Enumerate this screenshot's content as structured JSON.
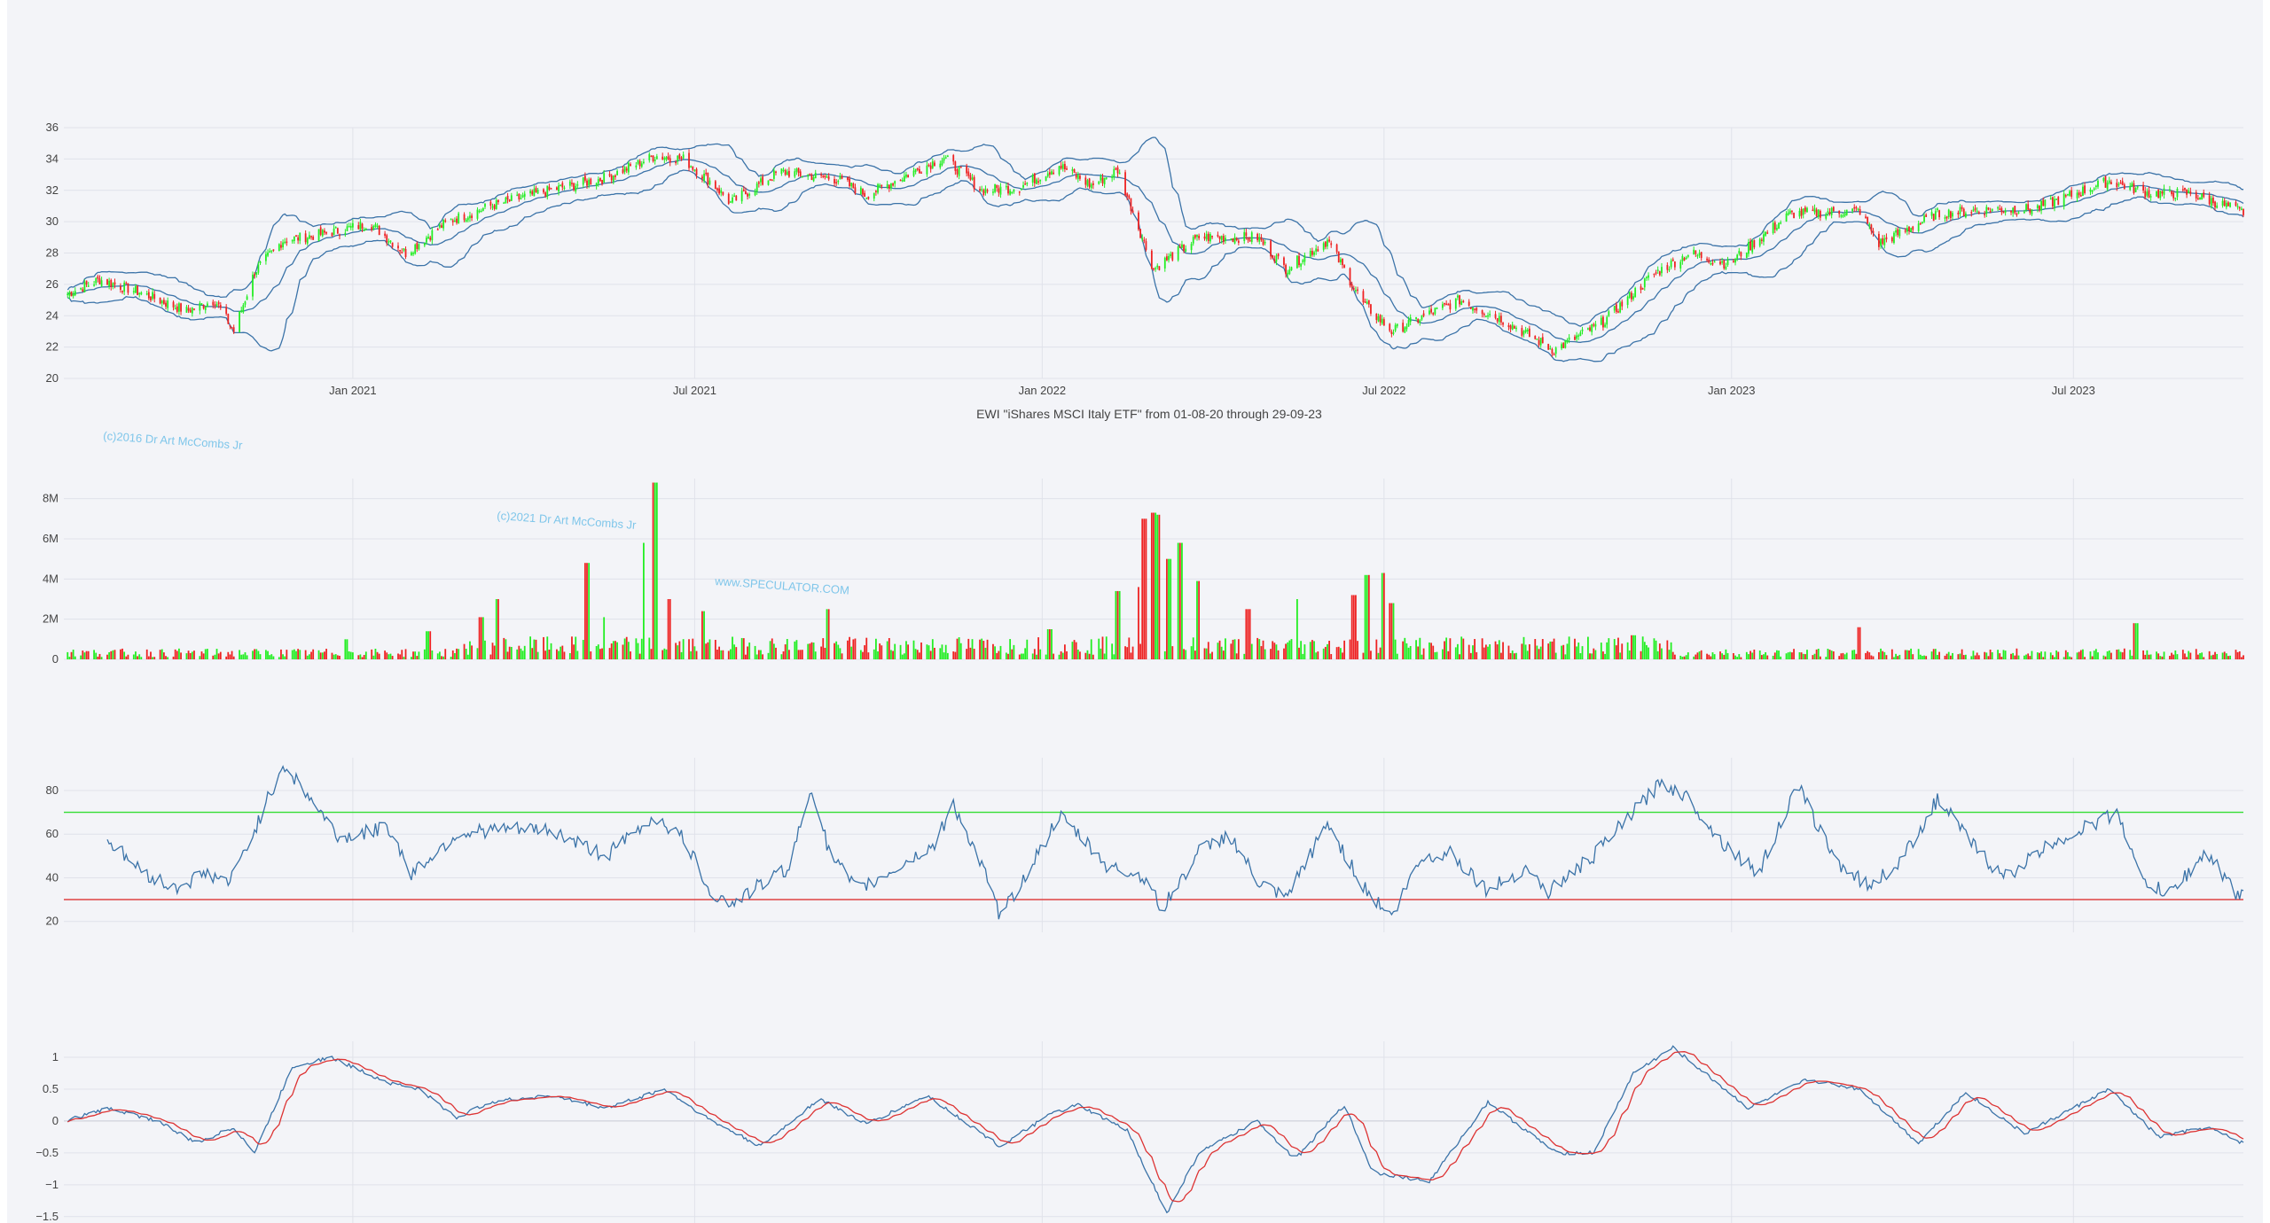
{
  "chart_data": [
    {
      "type": "candlestick",
      "panel": "price",
      "title": "EWI \"iShares MSCI Italy ETF\" from 01-08-20 through 29-09-23",
      "ylim": [
        20,
        36
      ],
      "y_ticks": [
        "20",
        "22",
        "24",
        "26",
        "28",
        "30",
        "32",
        "34",
        "36"
      ],
      "x_tick_labels": [
        "Jan 2021",
        "Jul 2021",
        "Jan 2022",
        "Jul 2022",
        "Jan 2023",
        "Jul 2023"
      ],
      "x_tick_dates": [
        "2021-01-01",
        "2021-07-01",
        "2022-01-01",
        "2022-07-01",
        "2023-01-01",
        "2023-07-01"
      ],
      "x_range": [
        "2020-08-01",
        "2023-09-29"
      ],
      "grid": true,
      "up_color": "#22ee22",
      "down_color": "#ee2222",
      "band_color": "#3b73a8",
      "close_anchors": [
        [
          "2020-08-01",
          25.3
        ],
        [
          "2020-08-20",
          26.3
        ],
        [
          "2020-09-10",
          25.5
        ],
        [
          "2020-10-05",
          24.3
        ],
        [
          "2020-10-20",
          25.0
        ],
        [
          "2020-10-30",
          23.0
        ],
        [
          "2020-11-10",
          26.8
        ],
        [
          "2020-11-25",
          28.8
        ],
        [
          "2020-12-20",
          29.3
        ],
        [
          "2021-01-10",
          29.9
        ],
        [
          "2021-01-29",
          28.0
        ],
        [
          "2021-02-20",
          30.0
        ],
        [
          "2021-03-15",
          31.0
        ],
        [
          "2021-04-15",
          32.0
        ],
        [
          "2021-05-15",
          32.8
        ],
        [
          "2021-06-10",
          34.2
        ],
        [
          "2021-06-25",
          34.0
        ],
        [
          "2021-07-10",
          32.5
        ],
        [
          "2021-07-20",
          31.2
        ],
        [
          "2021-08-15",
          33.2
        ],
        [
          "2021-09-15",
          32.7
        ],
        [
          "2021-09-30",
          31.7
        ],
        [
          "2021-10-25",
          33.2
        ],
        [
          "2021-11-10",
          34.1
        ],
        [
          "2021-11-30",
          32.0
        ],
        [
          "2021-12-20",
          32.2
        ],
        [
          "2022-01-10",
          33.6
        ],
        [
          "2022-01-27",
          32.3
        ],
        [
          "2022-02-10",
          33.3
        ],
        [
          "2022-03-01",
          27.0
        ],
        [
          "2022-03-25",
          29.0
        ],
        [
          "2022-04-25",
          29.0
        ],
        [
          "2022-05-10",
          27.0
        ],
        [
          "2022-06-01",
          28.8
        ],
        [
          "2022-06-20",
          24.8
        ],
        [
          "2022-07-05",
          23.0
        ],
        [
          "2022-08-10",
          25.0
        ],
        [
          "2022-09-01",
          23.8
        ],
        [
          "2022-09-29",
          21.8
        ],
        [
          "2022-10-25",
          23.6
        ],
        [
          "2022-11-20",
          26.6
        ],
        [
          "2022-12-10",
          28.0
        ],
        [
          "2022-12-30",
          27.3
        ],
        [
          "2023-02-01",
          30.5
        ],
        [
          "2023-03-10",
          30.7
        ],
        [
          "2023-03-20",
          28.6
        ],
        [
          "2023-04-20",
          30.5
        ],
        [
          "2023-05-20",
          30.8
        ],
        [
          "2023-06-10",
          30.8
        ],
        [
          "2023-07-20",
          32.6
        ],
        [
          "2023-08-10",
          31.8
        ],
        [
          "2023-09-01",
          31.8
        ],
        [
          "2023-09-29",
          30.6
        ]
      ]
    },
    {
      "type": "bar",
      "panel": "volume",
      "ylim": [
        0,
        9000000
      ],
      "y_ticks": [
        "0",
        "2M",
        "4M",
        "6M",
        "8M"
      ],
      "up_color": "#22ee22",
      "down_color": "#ee2222",
      "base_volume": 400000,
      "spikes": [
        [
          "2020-12-28",
          1000000
        ],
        [
          "2021-02-10",
          1400000
        ],
        [
          "2021-03-10",
          2100000
        ],
        [
          "2021-03-19",
          3000000
        ],
        [
          "2021-05-05",
          4800000
        ],
        [
          "2021-05-15",
          2100000
        ],
        [
          "2021-06-05",
          5800000
        ],
        [
          "2021-06-10",
          8800000
        ],
        [
          "2021-06-18",
          3000000
        ],
        [
          "2021-07-05",
          2400000
        ],
        [
          "2021-09-10",
          2500000
        ],
        [
          "2022-01-05",
          1500000
        ],
        [
          "2022-02-10",
          3400000
        ],
        [
          "2022-02-20",
          3600000
        ],
        [
          "2022-02-24",
          7000000
        ],
        [
          "2022-03-01",
          7300000
        ],
        [
          "2022-03-04",
          7200000
        ],
        [
          "2022-03-09",
          5000000
        ],
        [
          "2022-03-15",
          5800000
        ],
        [
          "2022-03-25",
          3900000
        ],
        [
          "2022-04-20",
          2500000
        ],
        [
          "2022-05-15",
          3000000
        ],
        [
          "2022-06-15",
          3200000
        ],
        [
          "2022-06-22",
          4200000
        ],
        [
          "2022-07-01",
          4300000
        ],
        [
          "2022-07-05",
          2800000
        ],
        [
          "2022-11-10",
          1200000
        ],
        [
          "2023-03-10",
          1600000
        ],
        [
          "2023-08-03",
          1800000
        ],
        [
          "2023-08-05",
          1600000
        ]
      ]
    },
    {
      "type": "line",
      "panel": "rsi",
      "ylim": [
        15,
        95
      ],
      "y_ticks": [
        "20",
        "40",
        "60",
        "80"
      ],
      "overbought": 70,
      "oversold": 30,
      "overbought_color": "#33dd33",
      "oversold_color": "#dd3333",
      "line_color": "#3b73a8",
      "anchors": [
        [
          "2020-08-22",
          59
        ],
        [
          "2020-09-10",
          44
        ],
        [
          "2020-09-28",
          35
        ],
        [
          "2020-10-15",
          42
        ],
        [
          "2020-10-28",
          38
        ],
        [
          "2020-11-10",
          62
        ],
        [
          "2020-11-25",
          92
        ],
        [
          "2020-12-10",
          76
        ],
        [
          "2020-12-25",
          58
        ],
        [
          "2021-01-20",
          63
        ],
        [
          "2021-02-01",
          42
        ],
        [
          "2021-02-25",
          60
        ],
        [
          "2021-03-15",
          62
        ],
        [
          "2021-04-15",
          62
        ],
        [
          "2021-05-15",
          50
        ],
        [
          "2021-06-10",
          68
        ],
        [
          "2021-06-25",
          58
        ],
        [
          "2021-07-10",
          33
        ],
        [
          "2021-07-20",
          28
        ],
        [
          "2021-08-20",
          45
        ],
        [
          "2021-09-01",
          82
        ],
        [
          "2021-09-10",
          52
        ],
        [
          "2021-09-25",
          34
        ],
        [
          "2021-10-15",
          44
        ],
        [
          "2021-11-05",
          55
        ],
        [
          "2021-11-15",
          74
        ],
        [
          "2021-12-01",
          43
        ],
        [
          "2021-12-10",
          22
        ],
        [
          "2021-12-25",
          44
        ],
        [
          "2022-01-10",
          68
        ],
        [
          "2022-01-20",
          60
        ],
        [
          "2022-02-05",
          45
        ],
        [
          "2022-02-25",
          40
        ],
        [
          "2022-03-05",
          25
        ],
        [
          "2022-03-25",
          52
        ],
        [
          "2022-04-10",
          60
        ],
        [
          "2022-04-25",
          38
        ],
        [
          "2022-05-10",
          30
        ],
        [
          "2022-06-01",
          65
        ],
        [
          "2022-06-20",
          36
        ],
        [
          "2022-07-05",
          22
        ],
        [
          "2022-07-20",
          48
        ],
        [
          "2022-08-05",
          52
        ],
        [
          "2022-08-25",
          34
        ],
        [
          "2022-09-15",
          45
        ],
        [
          "2022-09-25",
          33
        ],
        [
          "2022-10-20",
          50
        ],
        [
          "2022-11-10",
          70
        ],
        [
          "2022-11-25",
          84
        ],
        [
          "2022-12-10",
          76
        ],
        [
          "2022-12-25",
          58
        ],
        [
          "2023-01-15",
          42
        ],
        [
          "2023-02-05",
          82
        ],
        [
          "2023-02-25",
          48
        ],
        [
          "2023-03-15",
          36
        ],
        [
          "2023-04-01",
          48
        ],
        [
          "2023-04-20",
          76
        ],
        [
          "2023-05-10",
          54
        ],
        [
          "2023-05-25",
          40
        ],
        [
          "2023-06-20",
          56
        ],
        [
          "2023-07-15",
          66
        ],
        [
          "2023-07-25",
          70
        ],
        [
          "2023-08-05",
          40
        ],
        [
          "2023-08-20",
          32
        ],
        [
          "2023-09-10",
          52
        ],
        [
          "2023-09-27",
          30
        ],
        [
          "2023-09-29",
          33
        ]
      ]
    },
    {
      "type": "line",
      "panel": "macd",
      "ylim": [
        -1.6,
        1.25
      ],
      "y_ticks": [
        "1",
        "0.5",
        "0",
        "−0.5",
        "−1",
        "−1.5"
      ],
      "tick_values": [
        1,
        0.5,
        0,
        -0.5,
        -1,
        -1.5
      ],
      "series_colors": [
        "#3b73a8",
        "#dd3333"
      ],
      "signal_lag_days": 8,
      "anchors": [
        [
          "2020-08-01",
          0.0
        ],
        [
          "2020-08-25",
          0.2
        ],
        [
          "2020-09-20",
          0.0
        ],
        [
          "2020-10-10",
          -0.35
        ],
        [
          "2020-10-30",
          -0.1
        ],
        [
          "2020-11-10",
          -0.5
        ],
        [
          "2020-11-30",
          0.85
        ],
        [
          "2020-12-20",
          1.0
        ],
        [
          "2021-01-20",
          0.6
        ],
        [
          "2021-02-05",
          0.5
        ],
        [
          "2021-02-25",
          0.05
        ],
        [
          "2021-03-15",
          0.3
        ],
        [
          "2021-04-15",
          0.4
        ],
        [
          "2021-05-15",
          0.2
        ],
        [
          "2021-06-15",
          0.5
        ],
        [
          "2021-07-10",
          0.0
        ],
        [
          "2021-08-05",
          -0.4
        ],
        [
          "2021-09-05",
          0.35
        ],
        [
          "2021-09-30",
          -0.05
        ],
        [
          "2021-11-01",
          0.4
        ],
        [
          "2021-12-10",
          -0.4
        ],
        [
          "2022-01-05",
          0.1
        ],
        [
          "2022-01-20",
          0.25
        ],
        [
          "2022-02-15",
          -0.15
        ],
        [
          "2022-03-08",
          -1.45
        ],
        [
          "2022-03-25",
          -0.5
        ],
        [
          "2022-04-25",
          0.0
        ],
        [
          "2022-05-15",
          -0.6
        ],
        [
          "2022-06-10",
          0.25
        ],
        [
          "2022-06-25",
          -0.8
        ],
        [
          "2022-07-25",
          -0.95
        ],
        [
          "2022-08-25",
          0.3
        ],
        [
          "2022-09-30",
          -0.5
        ],
        [
          "2022-10-20",
          -0.5
        ],
        [
          "2022-11-10",
          0.75
        ],
        [
          "2022-12-01",
          1.15
        ],
        [
          "2023-01-10",
          0.2
        ],
        [
          "2023-02-10",
          0.65
        ],
        [
          "2023-03-10",
          0.5
        ],
        [
          "2023-04-10",
          -0.35
        ],
        [
          "2023-05-05",
          0.45
        ],
        [
          "2023-06-05",
          -0.2
        ],
        [
          "2023-07-20",
          0.5
        ],
        [
          "2023-08-15",
          -0.25
        ],
        [
          "2023-09-10",
          -0.1
        ],
        [
          "2023-09-29",
          -0.35
        ]
      ]
    }
  ],
  "watermarks": [
    "(c)2016 Dr Art McCombs Jr",
    "(c)2021 Dr Art McCombs Jr",
    "www.SPECULATOR.COM"
  ]
}
